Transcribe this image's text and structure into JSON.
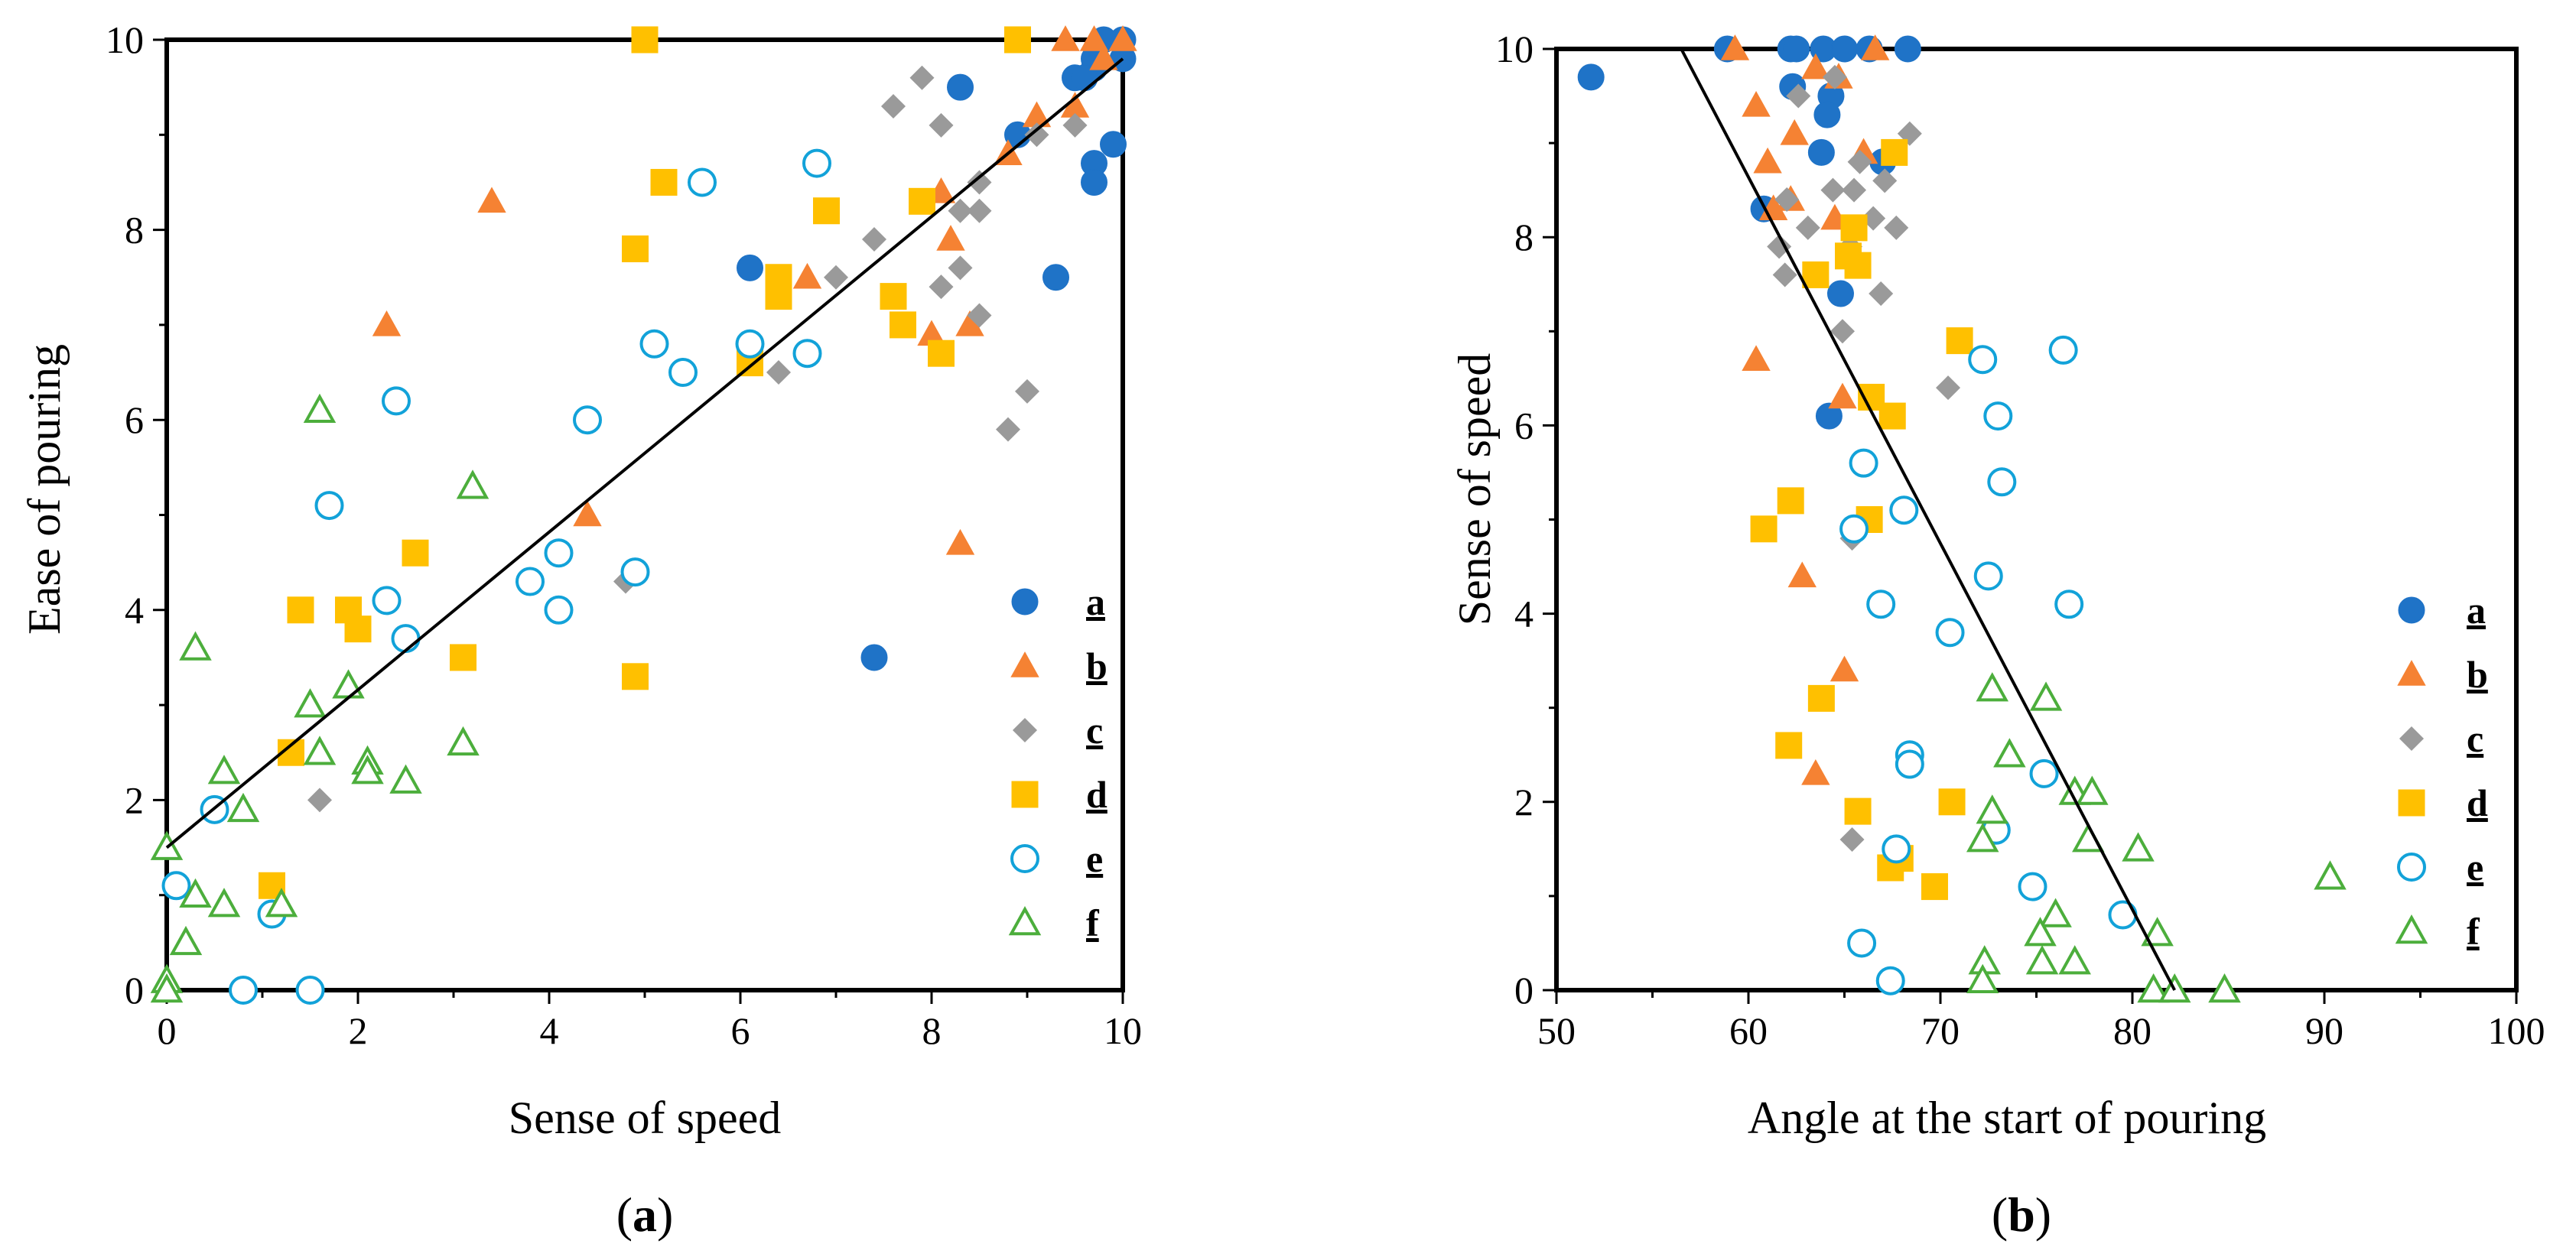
{
  "chart_data": [
    {
      "type": "scatter",
      "panel_label": "a",
      "title": "",
      "xlabel": "Sense of speed",
      "ylabel": "Ease of pouring",
      "xlim": [
        0,
        10
      ],
      "ylim": [
        0,
        10
      ],
      "xticks": [
        0,
        2,
        4,
        6,
        8,
        10
      ],
      "yticks": [
        0,
        2,
        4,
        6,
        8,
        10
      ],
      "grid": false,
      "legend_position": "bottom-right",
      "trendline": {
        "x": [
          0,
          10
        ],
        "y": [
          1.5,
          9.8
        ]
      },
      "series": [
        {
          "name": "a",
          "marker": "circle",
          "filled": true,
          "color": "#1f73c7",
          "x": [
            10,
            10,
            9.8,
            9.7,
            9.7,
            9.5,
            9.6,
            8.3,
            8.9,
            9.9,
            9.7,
            9.7,
            9.3,
            6.1,
            7.4
          ],
          "y": [
            10,
            9.8,
            10,
            9.8,
            9.7,
            9.6,
            9.6,
            9.5,
            9.0,
            8.9,
            8.7,
            8.5,
            7.5,
            7.6,
            3.5
          ]
        },
        {
          "name": "b",
          "marker": "triangle",
          "filled": true,
          "color": "#f58233",
          "x": [
            9.4,
            9.7,
            9.8,
            10,
            9.5,
            9.1,
            8.8,
            8.1,
            8.2,
            3.4,
            6.7,
            2.3,
            8.4,
            8.0,
            4.4,
            8.3
          ],
          "y": [
            10,
            10,
            9.8,
            10,
            9.3,
            9.2,
            8.8,
            8.4,
            7.9,
            8.3,
            7.5,
            7.0,
            7.0,
            6.9,
            5.0,
            4.7
          ]
        },
        {
          "name": "c",
          "marker": "diamond",
          "filled": true,
          "color": "#9a9a9a",
          "x": [
            7.9,
            7.6,
            8.1,
            9.1,
            9.5,
            8.5,
            8.3,
            8.5,
            7.4,
            7.0,
            8.3,
            8.1,
            8.5,
            9.0,
            6.4,
            8.8,
            4.8,
            1.6
          ],
          "y": [
            9.6,
            9.3,
            9.1,
            9.0,
            9.1,
            8.5,
            8.2,
            8.2,
            7.9,
            7.5,
            7.6,
            7.4,
            7.1,
            6.3,
            6.5,
            5.9,
            4.3,
            2.0
          ]
        },
        {
          "name": "d",
          "marker": "square",
          "filled": true,
          "color": "#ffc000",
          "x": [
            5.0,
            8.9,
            5.2,
            6.9,
            7.9,
            4.9,
            6.4,
            6.4,
            7.6,
            7.7,
            8.1,
            6.1,
            2.6,
            1.4,
            1.9,
            2.0,
            3.1,
            4.9,
            1.3,
            1.1
          ],
          "y": [
            10,
            10,
            8.5,
            8.2,
            8.3,
            7.8,
            7.5,
            7.3,
            7.3,
            7.0,
            6.7,
            6.6,
            4.6,
            4.0,
            4.0,
            3.8,
            3.5,
            3.3,
            2.5,
            1.1
          ]
        },
        {
          "name": "e",
          "marker": "circle",
          "filled": false,
          "color": "#12a2d9",
          "x": [
            5.6,
            6.8,
            5.1,
            6.1,
            6.7,
            5.4,
            2.4,
            4.4,
            1.7,
            4.1,
            3.8,
            4.9,
            2.3,
            4.1,
            2.5,
            0.5,
            0.1,
            1.1,
            0.8,
            1.5
          ],
          "y": [
            8.5,
            8.7,
            6.8,
            6.8,
            6.7,
            6.5,
            6.2,
            6.0,
            5.1,
            4.6,
            4.3,
            4.4,
            4.1,
            4.0,
            3.7,
            1.9,
            1.1,
            0.8,
            0,
            0
          ]
        },
        {
          "name": "f",
          "marker": "triangle",
          "filled": false,
          "color": "#4cae3c",
          "x": [
            1.6,
            3.2,
            0.3,
            1.9,
            1.5,
            3.1,
            1.6,
            2.1,
            2.1,
            0.6,
            2.5,
            0.8,
            0,
            0.3,
            0.6,
            1.2,
            0.2,
            0,
            0
          ],
          "y": [
            6.1,
            5.3,
            3.6,
            3.2,
            3.0,
            2.6,
            2.5,
            2.4,
            2.3,
            2.3,
            2.2,
            1.9,
            1.5,
            1.0,
            0.9,
            0.9,
            0.5,
            0.1,
            0
          ]
        }
      ]
    },
    {
      "type": "scatter",
      "panel_label": "b",
      "title": "",
      "xlabel": "Angle at the start of pouring",
      "ylabel": "Sense of speed",
      "xlim": [
        50,
        100
      ],
      "ylim": [
        0,
        10
      ],
      "xticks": [
        50,
        60,
        70,
        80,
        90,
        100
      ],
      "yticks": [
        0,
        2,
        4,
        6,
        8,
        10
      ],
      "grid": false,
      "legend_position": "bottom-right",
      "trendline": {
        "x": [
          56.5,
          82.2
        ],
        "y": [
          10,
          0
        ]
      },
      "series": [
        {
          "name": "a",
          "marker": "circle",
          "filled": true,
          "color": "#1f73c7",
          "x": [
            51.8,
            58.9,
            62.2,
            62.5,
            63.9,
            65.0,
            66.3,
            68.3,
            62.3,
            64.3,
            64.1,
            60.8,
            63.8,
            67.0,
            64.8,
            64.2
          ],
          "y": [
            9.7,
            10,
            10,
            10,
            10,
            10,
            10,
            10,
            9.6,
            9.5,
            9.3,
            8.3,
            8.9,
            8.8,
            7.4,
            6.1
          ]
        },
        {
          "name": "b",
          "marker": "triangle",
          "filled": true,
          "color": "#f58233",
          "x": [
            59.3,
            64.7,
            66.6,
            63.5,
            60.4,
            61.0,
            62.4,
            62.2,
            61.3,
            66.0,
            64.5,
            60.4,
            64.9,
            62.8,
            65.0,
            63.5
          ],
          "y": [
            10,
            9.7,
            10,
            9.8,
            9.4,
            8.8,
            9.1,
            8.4,
            8.3,
            8.9,
            8.2,
            6.7,
            6.3,
            4.4,
            3.4,
            2.3
          ]
        },
        {
          "name": "c",
          "marker": "diamond",
          "filled": true,
          "color": "#9a9a9a",
          "x": [
            62.6,
            64.5,
            68.4,
            65.8,
            67.1,
            62.0,
            63.1,
            64.4,
            65.5,
            66.5,
            67.7,
            61.6,
            61.9,
            65.3,
            66.9,
            64.9,
            70.4,
            65.4,
            65.4
          ],
          "y": [
            9.5,
            9.7,
            9.1,
            8.8,
            8.6,
            8.4,
            8.1,
            8.5,
            8.5,
            8.2,
            8.1,
            7.9,
            7.6,
            7.9,
            7.4,
            7.0,
            6.4,
            4.8,
            1.6
          ]
        },
        {
          "name": "d",
          "marker": "square",
          "filled": true,
          "color": "#ffc000",
          "x": [
            67.6,
            65.5,
            65.2,
            65.7,
            63.5,
            71.0,
            66.4,
            67.5,
            62.2,
            60.8,
            66.3,
            63.8,
            62.1,
            65.7,
            70.6,
            67.9,
            67.4,
            69.7
          ],
          "y": [
            8.9,
            8.1,
            7.8,
            7.7,
            7.6,
            6.9,
            6.3,
            6.1,
            5.2,
            4.9,
            5.0,
            3.1,
            2.6,
            1.9,
            2.0,
            1.4,
            1.3,
            1.1
          ]
        },
        {
          "name": "e",
          "marker": "circle",
          "filled": false,
          "color": "#12a2d9",
          "x": [
            76.4,
            72.2,
            73.0,
            73.2,
            66.0,
            65.5,
            68.1,
            72.5,
            66.9,
            70.5,
            76.7,
            68.4,
            68.4,
            75.4,
            72.9,
            67.7,
            74.8,
            79.5,
            65.9,
            67.4
          ],
          "y": [
            6.8,
            6.7,
            6.1,
            5.4,
            5.6,
            4.9,
            5.1,
            4.4,
            4.1,
            3.8,
            4.1,
            2.5,
            2.4,
            2.3,
            1.7,
            1.5,
            1.1,
            0.8,
            0.5,
            0.1
          ]
        },
        {
          "name": "f",
          "marker": "triangle",
          "filled": false,
          "color": "#4cae3c",
          "x": [
            72.7,
            75.5,
            73.6,
            77.0,
            77.9,
            72.7,
            72.2,
            77.7,
            80.3,
            90.3,
            76.0,
            75.2,
            81.3,
            72.3,
            77.0,
            75.3,
            81.1,
            82.2,
            84.8,
            72.2
          ],
          "y": [
            3.2,
            3.1,
            2.5,
            2.1,
            2.1,
            1.9,
            1.6,
            1.6,
            1.5,
            1.2,
            0.8,
            0.6,
            0.6,
            0.3,
            0.3,
            0.3,
            0,
            0,
            0,
            0.1
          ]
        }
      ]
    }
  ]
}
